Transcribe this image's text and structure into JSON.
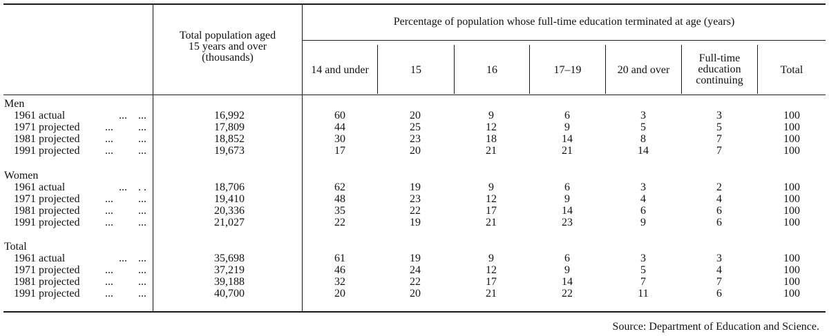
{
  "header": {
    "col_population": "Total population aged\n15 years and over\n(thousands)",
    "group_percentage": "Percentage of population whose full-time education terminated at age (years)",
    "sub_cols": [
      "14 and under",
      "15",
      "16",
      "17–19",
      "20 and over",
      "Full-time\neducation\ncontinuing",
      "Total"
    ]
  },
  "groups": [
    {
      "name": "Men",
      "rows": [
        {
          "label": "1961 actual",
          "dots": "...    ...",
          "population": "16,992",
          "values": [
            "60",
            "20",
            "9",
            "6",
            "3",
            "3",
            "100"
          ]
        },
        {
          "label": "1971 projected",
          "dots": "...         ...",
          "population": "17,809",
          "values": [
            "44",
            "25",
            "12",
            "9",
            "5",
            "5",
            "100"
          ]
        },
        {
          "label": "1981 projected",
          "dots": "...         ...",
          "population": "18,852",
          "values": [
            "30",
            "23",
            "18",
            "14",
            "8",
            "7",
            "100"
          ]
        },
        {
          "label": "1991 projected",
          "dots": "...         ...",
          "population": "19,673",
          "values": [
            "17",
            "20",
            "21",
            "21",
            "14",
            "7",
            "100"
          ]
        }
      ]
    },
    {
      "name": "Women",
      "rows": [
        {
          "label": "1961 actual",
          "dots": "...    . .",
          "population": "18,706",
          "values": [
            "62",
            "19",
            "9",
            "6",
            "3",
            "2",
            "100"
          ]
        },
        {
          "label": "1971 projected",
          "dots": "...         ...",
          "population": "19,410",
          "values": [
            "48",
            "23",
            "12",
            "9",
            "4",
            "4",
            "100"
          ]
        },
        {
          "label": "1981 projected",
          "dots": "...         ...",
          "population": "20,336",
          "values": [
            "35",
            "22",
            "17",
            "14",
            "6",
            "6",
            "100"
          ]
        },
        {
          "label": "1991 projected",
          "dots": "...         ...",
          "population": "21,027",
          "values": [
            "22",
            "19",
            "21",
            "23",
            "9",
            "6",
            "100"
          ]
        }
      ]
    },
    {
      "name": "Total",
      "rows": [
        {
          "label": "1961 actual",
          "dots": "...    ...",
          "population": "35,698",
          "values": [
            "61",
            "19",
            "9",
            "6",
            "3",
            "3",
            "100"
          ]
        },
        {
          "label": "1971 projected",
          "dots": "...         ...",
          "population": "37,219",
          "values": [
            "46",
            "24",
            "12",
            "9",
            "5",
            "4",
            "100"
          ]
        },
        {
          "label": "1981 projected",
          "dots": "...         ...",
          "population": "39,188",
          "values": [
            "32",
            "22",
            "17",
            "14",
            "7",
            "7",
            "100"
          ]
        },
        {
          "label": "1991 projected",
          "dots": "...         ...",
          "population": "40,700",
          "values": [
            "20",
            "20",
            "21",
            "22",
            "11",
            "6",
            "100"
          ]
        }
      ]
    }
  ],
  "source": "Source: Department of Education and Science."
}
